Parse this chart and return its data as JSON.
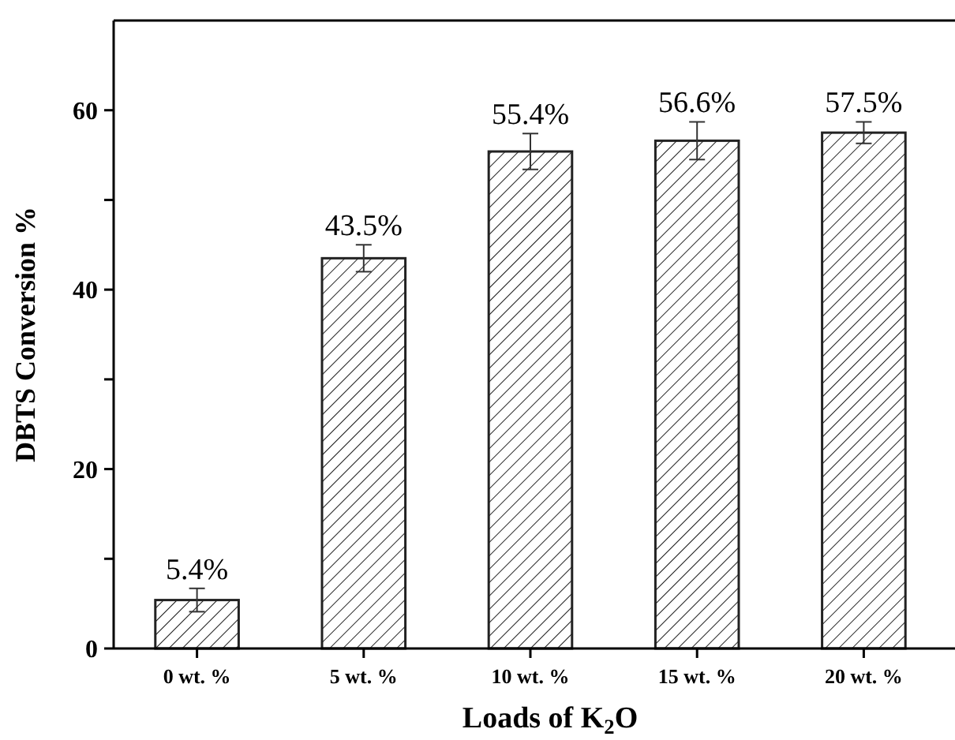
{
  "chart_data": {
    "type": "bar",
    "xlabel": "Loads of K$_{2}$O",
    "ylabel": "DBTS Conversion %",
    "categories": [
      "0 wt. %",
      "5 wt. %",
      "10 wt. %",
      "15 wt. %",
      "20 wt. %"
    ],
    "values": [
      5.4,
      43.5,
      55.4,
      56.6,
      57.5
    ],
    "errors": [
      1.3,
      1.5,
      2,
      2.1,
      1.2
    ],
    "value_labels": [
      "5.4%",
      "43.5%",
      "55.4%",
      "56.6%",
      "57.5%"
    ],
    "color": "#222222",
    "ylim": [
      0,
      70
    ],
    "yticks": [
      0,
      {
        "value": 10,
        "label": null
      },
      20,
      {
        "value": 30,
        "label": null
      },
      40,
      {
        "value": 50,
        "label": null
      },
      60
    ],
    "grid": false
  }
}
